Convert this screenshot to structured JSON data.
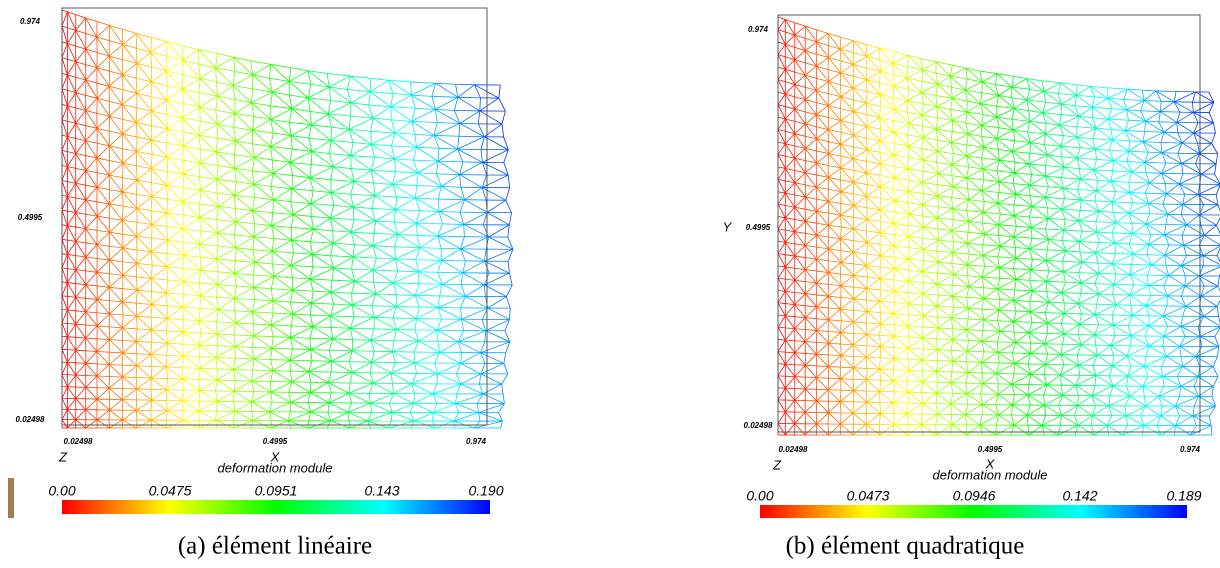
{
  "panels": [
    {
      "caption": "(a) élément linéaire",
      "y_ticks": [
        "0.974",
        "0.4995",
        "0.02498"
      ],
      "x_ticks": [
        "0.02498",
        "0.4995",
        "0.974"
      ],
      "z_label": "Z",
      "x_label": "X",
      "colorbar_title": "deformation module",
      "colorbar_labels": [
        "0.00",
        "0.0475",
        "0.0951",
        "0.143",
        "0.190"
      ]
    },
    {
      "caption": "(b) élément quadratique",
      "y_label": "Y",
      "y_ticks": [
        "0.974",
        "0.4995",
        "0.02498"
      ],
      "x_ticks": [
        "0.02498",
        "0.4995",
        "0.974"
      ],
      "z_label": "Z",
      "x_label": "X",
      "colorbar_title": "deformation module",
      "colorbar_labels": [
        "0.00",
        "0.0473",
        "0.0946",
        "0.142",
        "0.189"
      ]
    }
  ]
}
